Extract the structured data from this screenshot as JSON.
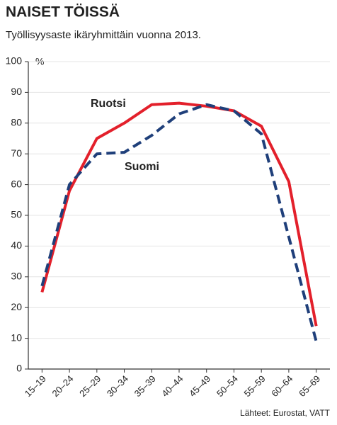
{
  "chart_data": {
    "type": "line",
    "title": "NAISET TÖISSÄ",
    "subtitle": "Työllisyysaste ikäryhmittäin vuonna 2013.",
    "y_unit": "%",
    "source": "Lähteet: Eurostat, VATT",
    "categories": [
      "15–19",
      "20–24",
      "25–29",
      "30–34",
      "35–39",
      "40–44",
      "45–49",
      "50–54",
      "55–59",
      "60–64",
      "65–69"
    ],
    "series": [
      {
        "name": "Ruotsi",
        "color": "#e3202b",
        "dashed": false,
        "values": [
          25,
          58,
          75,
          80,
          86,
          86.5,
          85.5,
          84,
          79,
          61,
          14
        ]
      },
      {
        "name": "Suomi",
        "color": "#1f3f7a",
        "dashed": true,
        "values": [
          27,
          60,
          70,
          70.5,
          76,
          83,
          86,
          84,
          76.5,
          43,
          9
        ]
      }
    ],
    "ylim": [
      0,
      100
    ],
    "yticks": [
      0,
      10,
      20,
      30,
      40,
      50,
      60,
      70,
      80,
      90,
      100
    ],
    "grid": true
  }
}
